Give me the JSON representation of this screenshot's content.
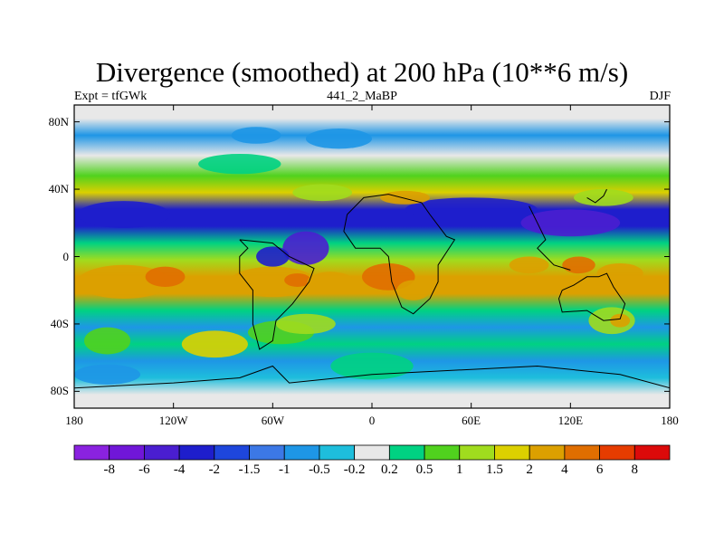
{
  "chart_data": {
    "type": "heatmap",
    "title": "Divergence (smoothed) at 200 hPa (10**6 m/s)",
    "left_label": "Expt = tfGWk",
    "center_label": "441_2_MaBP",
    "right_label": "DJF",
    "x_ticks": [
      "180",
      "120W",
      "60W",
      "0",
      "60E",
      "120E",
      "180"
    ],
    "x_tick_values": [
      -180,
      -120,
      -60,
      0,
      60,
      120,
      180
    ],
    "y_ticks": [
      "80N",
      "40N",
      "0",
      "40S",
      "80S"
    ],
    "y_tick_values": [
      80,
      40,
      0,
      -40,
      -80
    ],
    "xlim": [
      -180,
      180
    ],
    "ylim": [
      -90,
      90
    ],
    "colorbar": {
      "levels": [
        "-8",
        "-6",
        "-4",
        "-2",
        "-1.5",
        "-1",
        "-0.5",
        "-0.2",
        "0.2",
        "0.5",
        "1",
        "1.5",
        "2",
        "4",
        "6",
        "8"
      ],
      "colors": [
        "#8a22e0",
        "#7016d8",
        "#4a1ed0",
        "#1e1ecc",
        "#1e46dc",
        "#3c78e6",
        "#1e96e6",
        "#1ebedc",
        "#e8e8e8",
        "#00d282",
        "#50d21e",
        "#a0dc1e",
        "#dcd000",
        "#dca000",
        "#e06e00",
        "#e63c00",
        "#dc0a0a"
      ]
    },
    "field_bands": [
      {
        "lat": 82,
        "value": 0.0
      },
      {
        "lat": 72,
        "value": -0.6
      },
      {
        "lat": 60,
        "value": 0.0
      },
      {
        "lat": 48,
        "value": 0.7
      },
      {
        "lat": 38,
        "value": 1.5
      },
      {
        "lat": 28,
        "value": -2.5
      },
      {
        "lat": 18,
        "value": -3.0
      },
      {
        "lat": 8,
        "value": 0.2
      },
      {
        "lat": -2,
        "value": 1.0
      },
      {
        "lat": -12,
        "value": 3.0
      },
      {
        "lat": -22,
        "value": 2.0
      },
      {
        "lat": -32,
        "value": 0.3
      },
      {
        "lat": -42,
        "value": -0.6
      },
      {
        "lat": -52,
        "value": 0.3
      },
      {
        "lat": -62,
        "value": -0.8
      },
      {
        "lat": -72,
        "value": -0.4
      },
      {
        "lat": -82,
        "value": 0.0
      }
    ]
  }
}
